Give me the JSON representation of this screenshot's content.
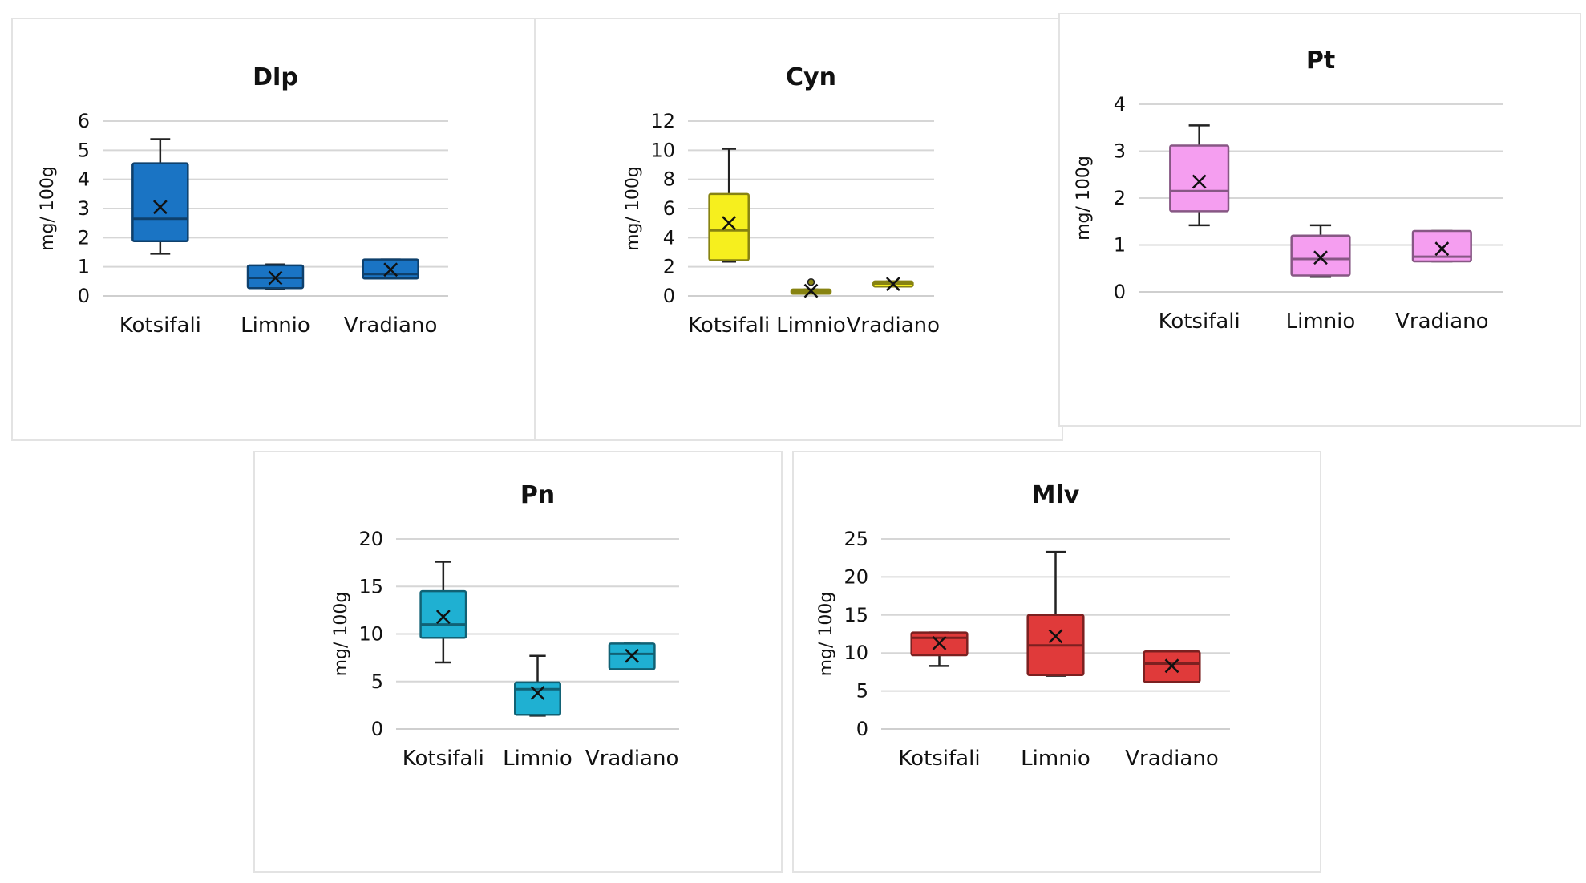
{
  "chart_data": [
    {
      "id": "dlp",
      "type": "box",
      "title": "Dlp",
      "ylabel": "mg/ 100g",
      "ylim": [
        0,
        6
      ],
      "yticks": [
        0,
        1,
        2,
        3,
        4,
        5,
        6
      ],
      "categories": [
        "Kotsifali",
        "Limnio",
        "Vradiano"
      ],
      "color": "#1a74c4",
      "boxes": [
        {
          "category": "Kotsifali",
          "min": 1.45,
          "q1": 1.88,
          "median": 2.65,
          "q3": 4.55,
          "max": 5.38,
          "mean": 3.05
        },
        {
          "category": "Limnio",
          "min": 0.25,
          "q1": 0.27,
          "median": 0.62,
          "q3": 1.05,
          "max": 1.08,
          "mean": 0.62
        },
        {
          "category": "Vradiano",
          "min": 0.6,
          "q1": 0.6,
          "median": 0.75,
          "q3": 1.25,
          "max": 1.25,
          "mean": 0.9
        }
      ]
    },
    {
      "id": "cyn",
      "type": "box",
      "title": "Cyn",
      "ylabel": "mg/ 100g",
      "ylim": [
        0,
        12
      ],
      "yticks": [
        0,
        2,
        4,
        6,
        8,
        10,
        12
      ],
      "categories": [
        "Kotsifali",
        "Limnio",
        "Vradiano"
      ],
      "color": "#f6ef1e",
      "boxes": [
        {
          "category": "Kotsifali",
          "min": 2.35,
          "q1": 2.45,
          "median": 4.5,
          "q3": 7.0,
          "max": 10.1,
          "mean": 5.0
        },
        {
          "category": "Limnio",
          "min": 0.15,
          "q1": 0.15,
          "median": 0.3,
          "q3": 0.45,
          "max": 0.45,
          "mean": 0.35,
          "outliers": [
            0.95
          ]
        },
        {
          "category": "Vradiano",
          "min": 0.65,
          "q1": 0.65,
          "median": 0.85,
          "q3": 1.0,
          "max": 1.0,
          "mean": 0.82
        }
      ]
    },
    {
      "id": "pt",
      "type": "box",
      "title": "Pt",
      "ylabel": "mg/ 100g",
      "ylim": [
        0,
        4
      ],
      "yticks": [
        0,
        1,
        2,
        3,
        4
      ],
      "categories": [
        "Kotsifali",
        "Limnio",
        "Vradiano"
      ],
      "color": "#f59ef0",
      "boxes": [
        {
          "category": "Kotsifali",
          "min": 1.42,
          "q1": 1.72,
          "median": 2.15,
          "q3": 3.12,
          "max": 3.55,
          "mean": 2.35
        },
        {
          "category": "Limnio",
          "min": 0.32,
          "q1": 0.35,
          "median": 0.7,
          "q3": 1.2,
          "max": 1.42,
          "mean": 0.73
        },
        {
          "category": "Vradiano",
          "min": 0.65,
          "q1": 0.65,
          "median": 0.75,
          "q3": 1.3,
          "max": 1.3,
          "mean": 0.92
        }
      ]
    },
    {
      "id": "pn",
      "type": "box",
      "title": "Pn",
      "ylabel": "mg/ 100g",
      "ylim": [
        0,
        20
      ],
      "yticks": [
        0,
        5,
        10,
        15,
        20
      ],
      "categories": [
        "Kotsifali",
        "Limnio",
        "Vradiano"
      ],
      "color": "#1fb0d2",
      "boxes": [
        {
          "category": "Kotsifali",
          "min": 7.0,
          "q1": 9.6,
          "median": 11.0,
          "q3": 14.5,
          "max": 17.6,
          "mean": 11.8
        },
        {
          "category": "Limnio",
          "min": 1.4,
          "q1": 1.5,
          "median": 4.2,
          "q3": 4.9,
          "max": 7.7,
          "mean": 3.8
        },
        {
          "category": "Vradiano",
          "min": 6.3,
          "q1": 6.3,
          "median": 7.9,
          "q3": 9.0,
          "max": 9.0,
          "mean": 7.7
        }
      ]
    },
    {
      "id": "mlv",
      "type": "box",
      "title": "Mlv",
      "ylabel": "mg/ 100g",
      "ylim": [
        0,
        25
      ],
      "yticks": [
        0,
        5,
        10,
        15,
        20,
        25
      ],
      "categories": [
        "Kotsifali",
        "Limnio",
        "Vradiano"
      ],
      "color": "#e03a3a",
      "boxes": [
        {
          "category": "Kotsifali",
          "min": 8.3,
          "q1": 9.7,
          "median": 12.0,
          "q3": 12.7,
          "max": 12.7,
          "mean": 11.3
        },
        {
          "category": "Limnio",
          "min": 7.0,
          "q1": 7.1,
          "median": 11.0,
          "q3": 15.0,
          "max": 23.3,
          "mean": 12.2
        },
        {
          "category": "Vradiano",
          "min": 6.2,
          "q1": 6.2,
          "median": 8.6,
          "q3": 10.2,
          "max": 10.2,
          "mean": 8.3
        }
      ]
    }
  ]
}
